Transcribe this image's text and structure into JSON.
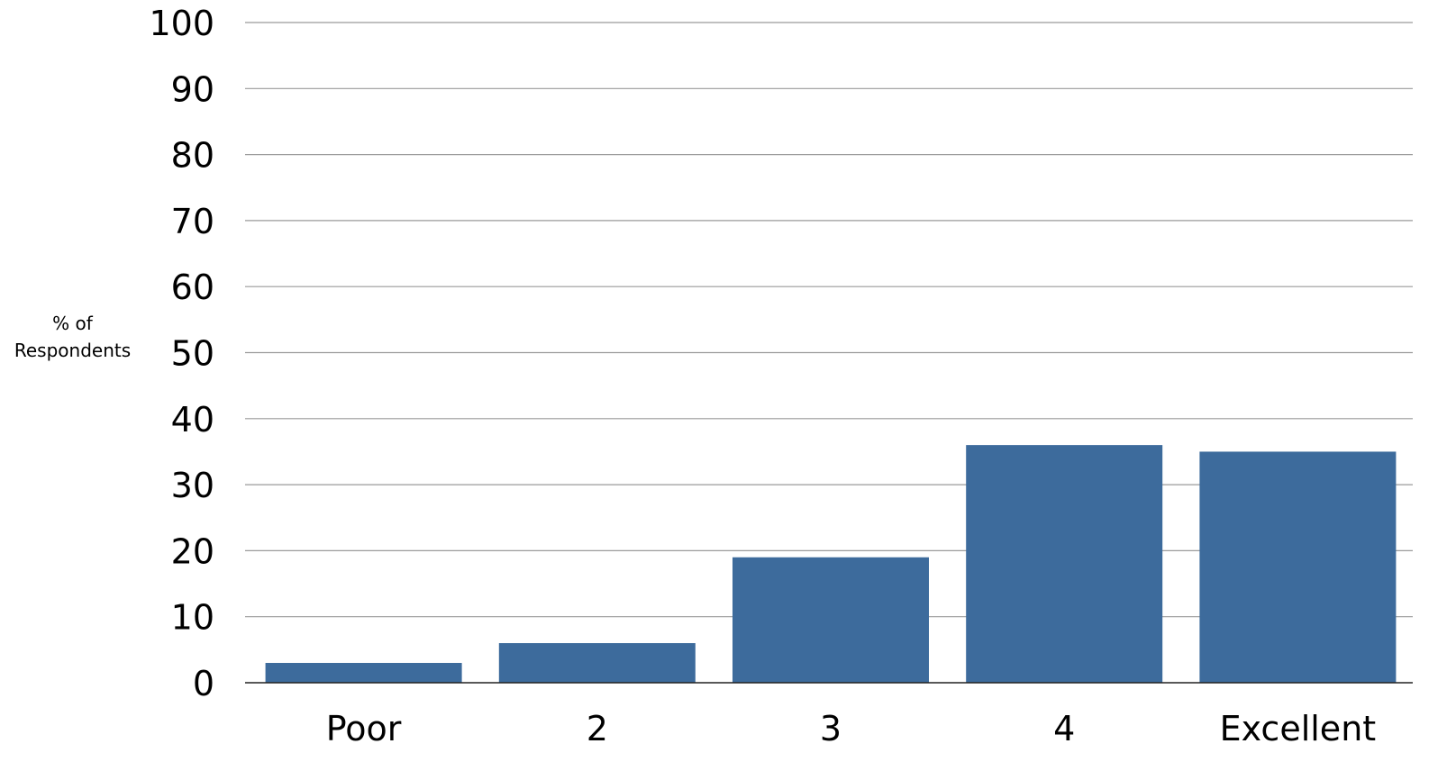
{
  "chart_data": {
    "type": "bar",
    "title": "",
    "xlabel": "",
    "ylabel_lines": [
      "% of",
      "Respondents"
    ],
    "categories": [
      "Poor",
      "2",
      "3",
      "4",
      "Excellent"
    ],
    "values": [
      3,
      6,
      19,
      36,
      35
    ],
    "ylim": [
      0,
      100
    ],
    "yticks": [
      0,
      10,
      20,
      30,
      40,
      50,
      60,
      70,
      80,
      90,
      100
    ],
    "grid": true,
    "legend": "none",
    "colors": {
      "bar": "#3d6b9c",
      "grid": "#9a9a9a",
      "axis": "#222222",
      "text": "#000000"
    }
  }
}
